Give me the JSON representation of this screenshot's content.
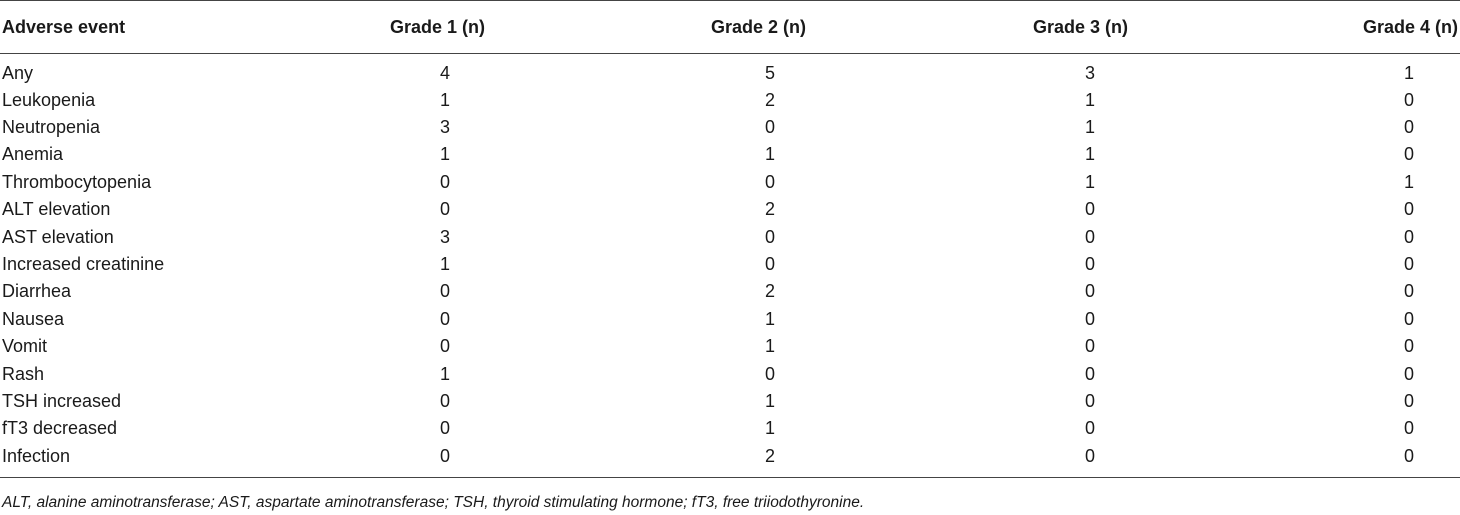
{
  "table": {
    "headers": [
      "Adverse event",
      "Grade 1 (n)",
      "Grade 2 (n)",
      "Grade 3 (n)",
      "Grade 4 (n)"
    ],
    "rows": [
      [
        "Any",
        "4",
        "5",
        "3",
        "1"
      ],
      [
        "Leukopenia",
        "1",
        "2",
        "1",
        "0"
      ],
      [
        "Neutropenia",
        "3",
        "0",
        "1",
        "0"
      ],
      [
        "Anemia",
        "1",
        "1",
        "1",
        "0"
      ],
      [
        "Thrombocytopenia",
        "0",
        "0",
        "1",
        "1"
      ],
      [
        "ALT elevation",
        "0",
        "2",
        "0",
        "0"
      ],
      [
        "AST elevation",
        "3",
        "0",
        "0",
        "0"
      ],
      [
        "Increased creatinine",
        "1",
        "0",
        "0",
        "0"
      ],
      [
        "Diarrhea",
        "0",
        "2",
        "0",
        "0"
      ],
      [
        "Nausea",
        "0",
        "1",
        "0",
        "0"
      ],
      [
        "Vomit",
        "0",
        "1",
        "0",
        "0"
      ],
      [
        "Rash",
        "1",
        "0",
        "0",
        "0"
      ],
      [
        "TSH increased",
        "0",
        "1",
        "0",
        "0"
      ],
      [
        "fT3 decreased",
        "0",
        "1",
        "0",
        "0"
      ],
      [
        "Infection",
        "0",
        "2",
        "0",
        "0"
      ]
    ]
  },
  "footnote": "ALT, alanine aminotransferase; AST, aspartate aminotransferase; TSH, thyroid stimulating hormone; fT3, free triiodothyronine."
}
